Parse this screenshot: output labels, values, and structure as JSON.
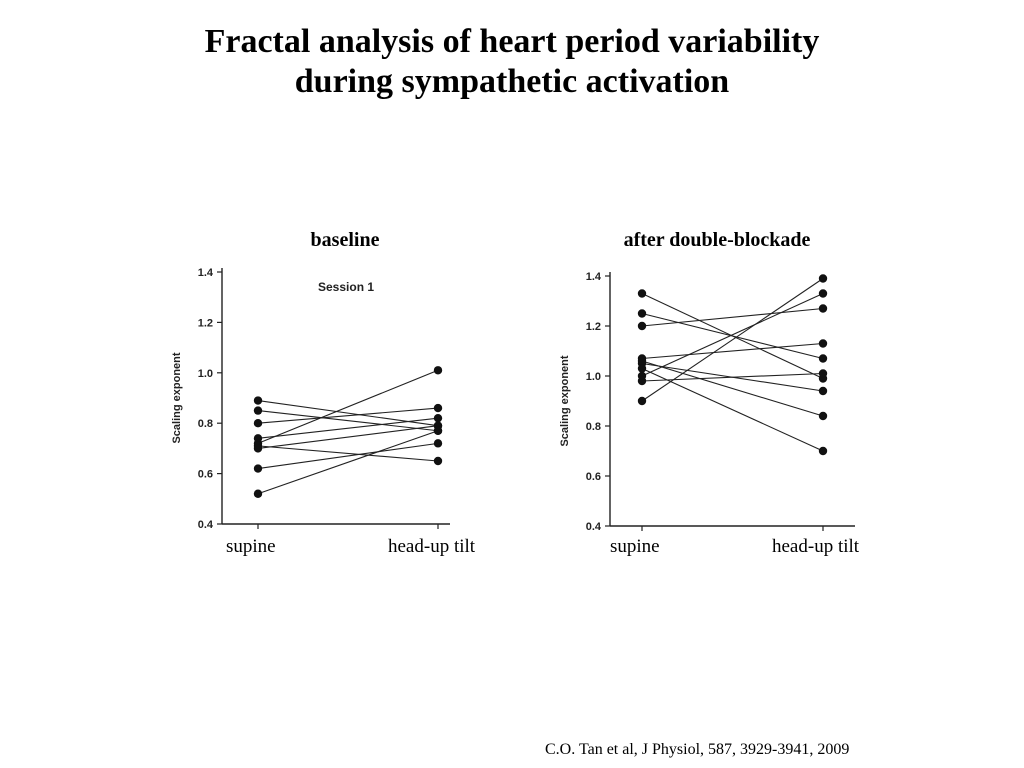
{
  "slide": {
    "title_line1": "Fractal analysis of heart period variability",
    "title_line2": "during sympathetic activation",
    "citation": "C.O. Tan et al, J Physiol, 587, 3929-3941, 2009"
  },
  "chart_data": [
    {
      "type": "line",
      "title": "baseline",
      "annotation": "Session 1",
      "categories": [
        "supine",
        "head-up tilt"
      ],
      "ylabel": "Scaling exponent",
      "ylim": [
        0.4,
        1.4
      ],
      "yticks": [
        "0.4",
        "0.6",
        "0.8",
        "1.0",
        "1.2",
        "1.4"
      ],
      "grid": false,
      "series": [
        {
          "values": [
            0.89,
            0.79
          ]
        },
        {
          "values": [
            0.85,
            0.77
          ]
        },
        {
          "values": [
            0.8,
            0.86
          ]
        },
        {
          "values": [
            0.74,
            0.82
          ]
        },
        {
          "values": [
            0.72,
            1.01
          ]
        },
        {
          "values": [
            0.71,
            0.65
          ]
        },
        {
          "values": [
            0.7,
            0.79
          ]
        },
        {
          "values": [
            0.62,
            0.72
          ]
        },
        {
          "values": [
            0.52,
            0.77
          ]
        }
      ]
    },
    {
      "type": "line",
      "title": "after double-blockade",
      "categories": [
        "supine",
        "head-up tilt"
      ],
      "ylabel": "Scaling exponent",
      "ylim": [
        0.4,
        1.4
      ],
      "yticks": [
        "0.4",
        "0.6",
        "0.8",
        "1.0",
        "1.2",
        "1.4"
      ],
      "grid": false,
      "series": [
        {
          "values": [
            1.33,
            0.99
          ]
        },
        {
          "values": [
            1.25,
            1.07
          ]
        },
        {
          "values": [
            1.2,
            1.27
          ]
        },
        {
          "values": [
            1.07,
            1.13
          ]
        },
        {
          "values": [
            1.05,
            0.94
          ]
        },
        {
          "values": [
            1.06,
            0.84
          ]
        },
        {
          "values": [
            1.0,
            1.33
          ]
        },
        {
          "values": [
            0.98,
            1.01
          ]
        },
        {
          "values": [
            0.9,
            1.39
          ]
        },
        {
          "values": [
            1.03,
            0.7
          ]
        }
      ]
    }
  ]
}
